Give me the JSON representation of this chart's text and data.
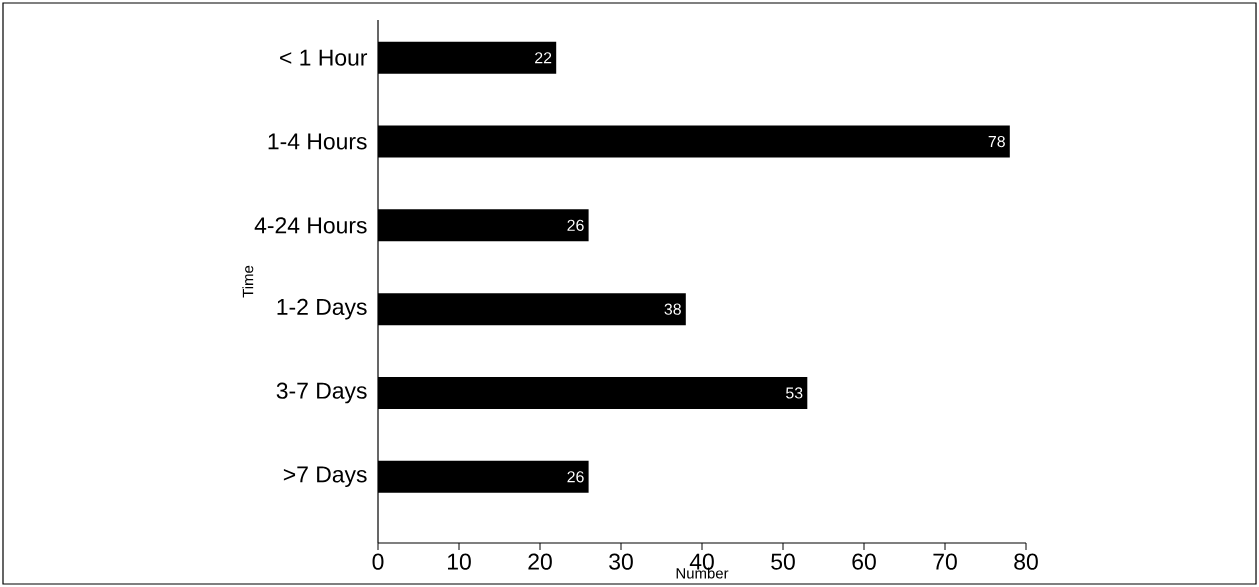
{
  "chart_data": {
    "type": "bar",
    "orientation": "horizontal",
    "xlabel": "Number",
    "ylabel": "Time",
    "categories": [
      "< 1 Hour",
      "1-4 Hours",
      "4-24 Hours",
      "1-2 Days",
      "3-7 Days",
      ">7 Days"
    ],
    "values": [
      22,
      78,
      26,
      38,
      53,
      26
    ],
    "color": "#000000",
    "xlim": [
      0,
      80
    ],
    "xticks": [
      0,
      10,
      20,
      30,
      40,
      50,
      60,
      70,
      80
    ],
    "data_labels": true
  }
}
